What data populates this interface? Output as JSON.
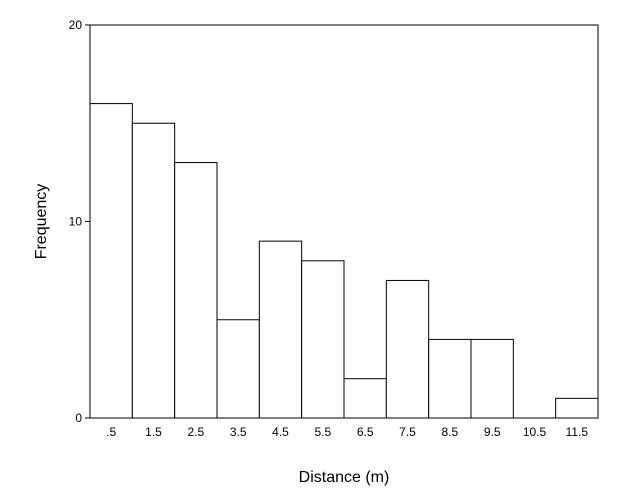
{
  "chart_data": {
    "type": "bar",
    "title": "",
    "xlabel": "Distance (m)",
    "ylabel": "Frequency",
    "categories": [
      ".5",
      "1.5",
      "2.5",
      "3.5",
      "4.5",
      "5.5",
      "6.5",
      "7.5",
      "8.5",
      "9.5",
      "10.5",
      "11.5"
    ],
    "values": [
      16,
      15,
      13,
      5,
      9,
      8,
      2,
      7,
      4,
      4,
      0,
      1
    ],
    "ylim": [
      0,
      20
    ],
    "yticks": [
      "0",
      "10",
      "20"
    ],
    "grid": false,
    "legend": "none",
    "colors": {
      "bar_fill": "#ffffff",
      "bar_stroke": "#000000",
      "axis": "#000000",
      "frame": "#000000"
    }
  }
}
